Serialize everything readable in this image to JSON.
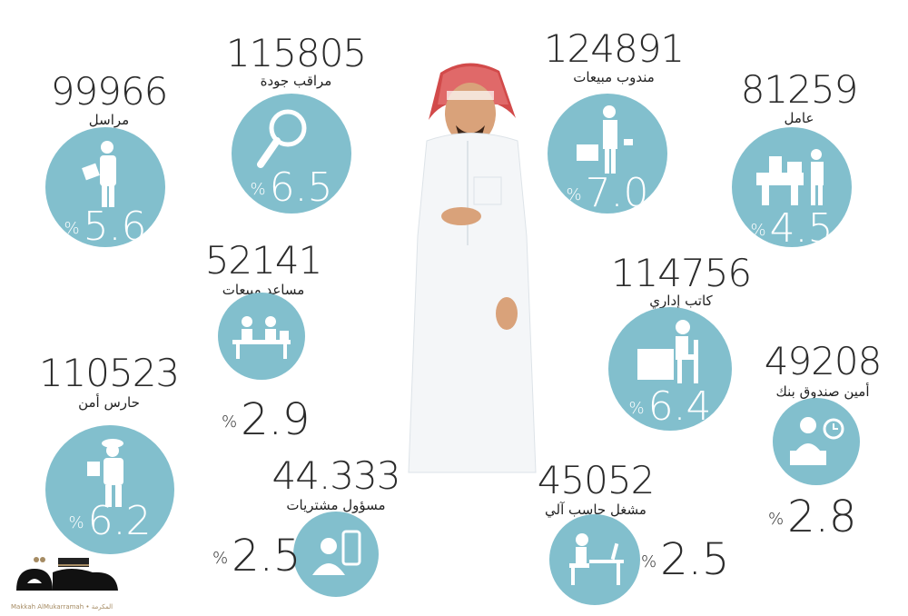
{
  "accent_color": "#82bfcd",
  "jobs": [
    {
      "count": "99966",
      "title": "مراسل",
      "percent": "5.6",
      "icon": "courier-icon"
    },
    {
      "count": "115805",
      "title": "مراقب جودة",
      "percent": "6.5",
      "icon": "magnifier-icon"
    },
    {
      "count": "124891",
      "title": "مندوب مبيعات",
      "percent": "7.0",
      "icon": "salesman-briefcase-icon"
    },
    {
      "count": "81259",
      "title": "عامل",
      "percent": "4.5",
      "icon": "worker-machine-icon"
    },
    {
      "count": "52141",
      "title": "مساعد مبيعات",
      "percent": "2.9",
      "icon": "sales-assistants-desk-icon"
    },
    {
      "count": "114756",
      "title": "كاتب إداري",
      "percent": "6.4",
      "icon": "clerk-desk-icon"
    },
    {
      "count": "49208",
      "title": "أمين صندوق بنك",
      "percent": "2.8",
      "icon": "bank-teller-clock-icon"
    },
    {
      "count": "110523",
      "title": "حارس أمن",
      "percent": "6.2",
      "icon": "security-guard-icon"
    },
    {
      "count": "44.333",
      "title": "مسؤول مشتريات",
      "percent": "2.5",
      "icon": "purchasing-officer-icon"
    },
    {
      "count": "45052",
      "title": "مشغل حاسب آلي",
      "percent": "2.5",
      "icon": "computer-operator-icon"
    }
  ],
  "percent_sign": "%",
  "logo": {
    "text": "مكة",
    "subtitle": "Makkah AlMukarramah • المكرمة"
  }
}
